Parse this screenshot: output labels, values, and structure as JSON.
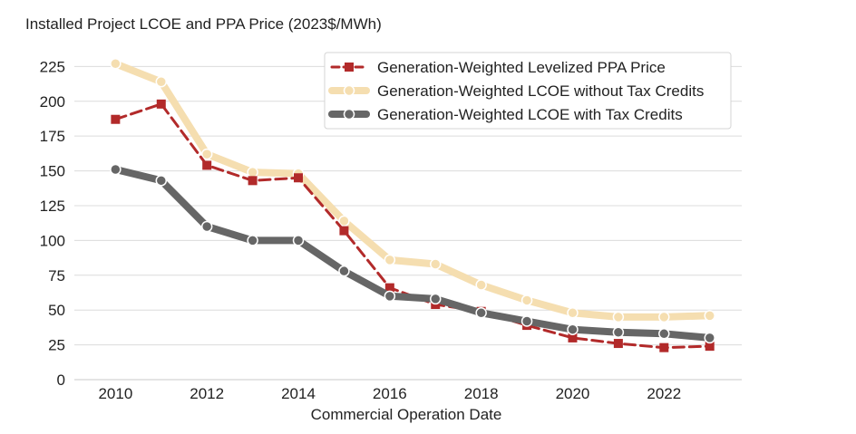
{
  "chart_data": {
    "type": "line",
    "title": "Installed Project LCOE and PPA Price (2023$/MWh)",
    "xlabel": "Commercial Operation Date",
    "ylabel": "",
    "x": [
      2010,
      2011,
      2012,
      2013,
      2014,
      2015,
      2016,
      2017,
      2018,
      2019,
      2020,
      2021,
      2022,
      2023
    ],
    "xlim": [
      2009.1,
      2023.7
    ],
    "ylim": [
      0,
      235
    ],
    "xticks": [
      2010,
      2012,
      2014,
      2016,
      2018,
      2020,
      2022
    ],
    "yticks": [
      0,
      25,
      50,
      75,
      100,
      125,
      150,
      175,
      200,
      225
    ],
    "grid": "horizontal",
    "legend_position": "top-right",
    "series": [
      {
        "name": "Generation-Weighted Levelized PPA Price",
        "color": "#b22a2a",
        "line_style": "dashed",
        "marker": "square",
        "values": [
          187,
          198,
          154,
          143,
          145,
          107,
          66,
          54,
          49,
          39,
          30,
          26,
          23,
          24
        ]
      },
      {
        "name": "Generation-Weighted LCOE without Tax Credits",
        "color": "#f5deb0",
        "line_style": "solid",
        "marker": "circle",
        "values": [
          227,
          214,
          162,
          149,
          148,
          114,
          86,
          83,
          68,
          57,
          48,
          45,
          45,
          46
        ]
      },
      {
        "name": "Generation-Weighted LCOE with Tax Credits",
        "color": "#666666",
        "line_style": "solid",
        "marker": "circle",
        "values": [
          151,
          143,
          110,
          100,
          100,
          78,
          60,
          58,
          48,
          42,
          36,
          34,
          33,
          30
        ]
      }
    ]
  }
}
